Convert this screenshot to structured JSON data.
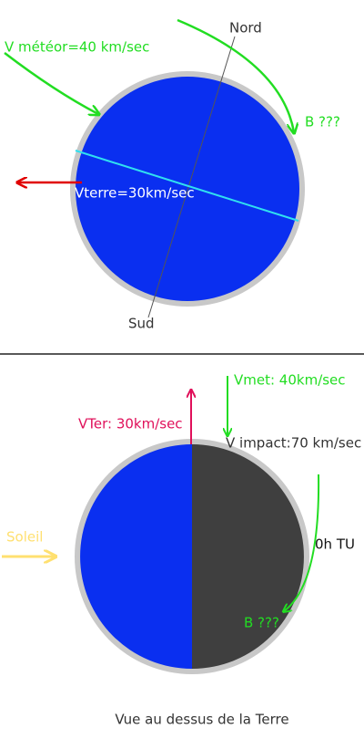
{
  "top": {
    "north": "Nord",
    "south": "Sud",
    "meteor_speed": "V météor=40 km/sec",
    "point_b": "B ???",
    "earth_speed": "Vterre=30km/sec"
  },
  "bottom": {
    "meteor_speed": "Vmet: 40km/sec",
    "earth_speed": "VTer: 30km/sec",
    "impact_speed": "V impact:70 km/sec",
    "sun": "Soleil",
    "time": "0h TU",
    "point_b": "B ???"
  },
  "caption": "Vue au dessus de la Terre"
}
